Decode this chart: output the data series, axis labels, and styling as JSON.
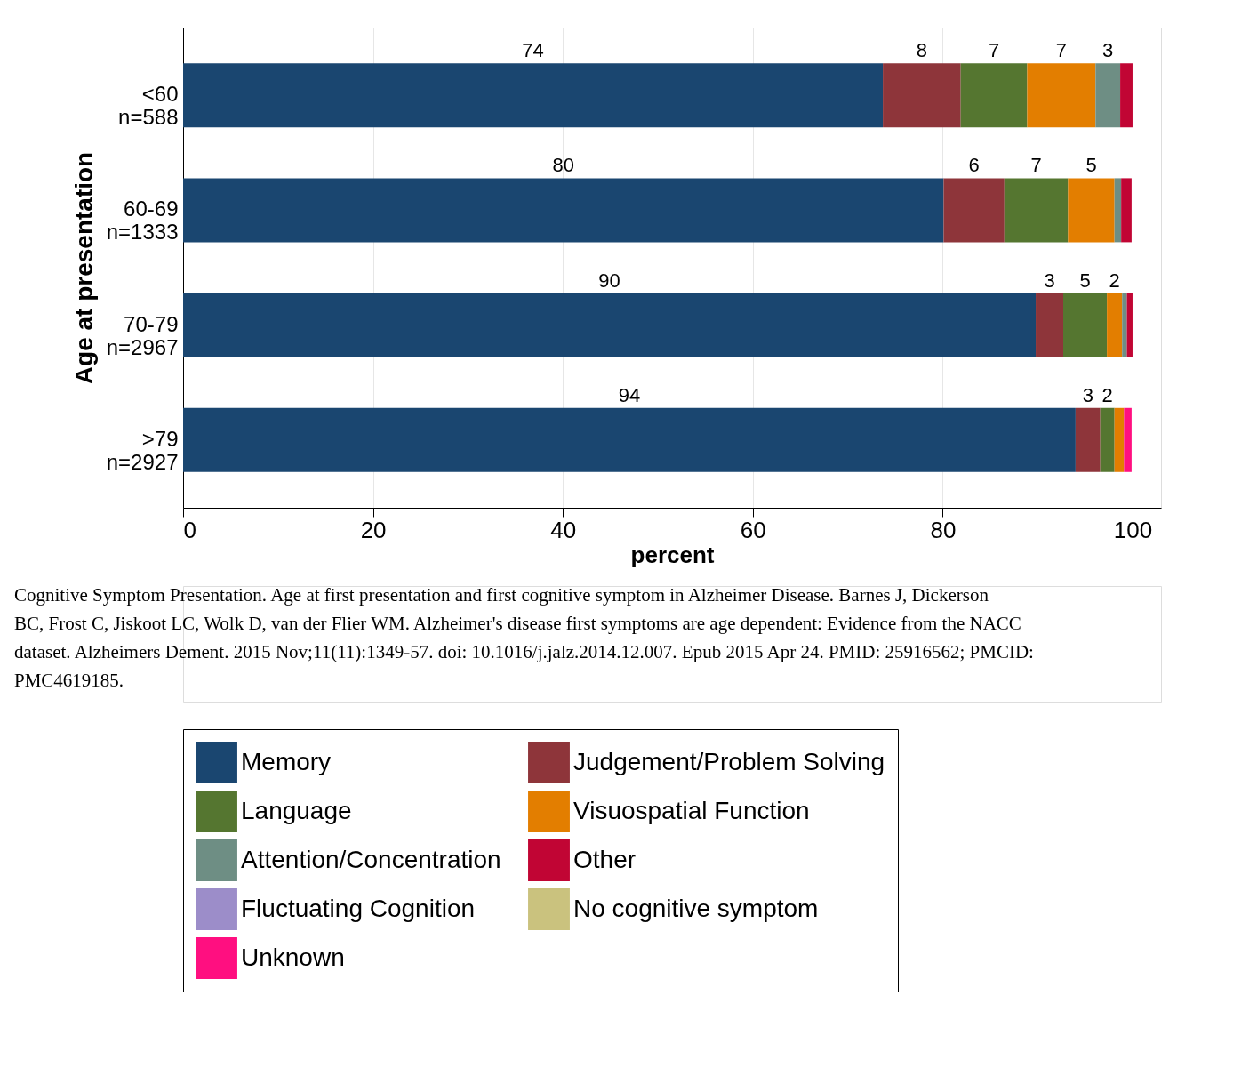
{
  "chart_data": {
    "type": "bar",
    "orientation": "horizontal",
    "stacked": true,
    "categories": [
      "<60\nn=588",
      "60-69\nn=1333",
      "70-79\nn=2967",
      ">79\nn=2927"
    ],
    "series": [
      {
        "name": "Memory",
        "color": "#1a4670",
        "values": [
          73.7,
          80.1,
          89.8,
          94.0
        ],
        "value_labels": [
          "74",
          "80",
          "90",
          "94"
        ]
      },
      {
        "name": "Judgement/Problem Solving",
        "color": "#8e353a",
        "values": [
          8.2,
          6.4,
          2.9,
          2.6
        ],
        "value_labels": [
          "8",
          "6",
          "3",
          "3"
        ]
      },
      {
        "name": "Language",
        "color": "#557630",
        "values": [
          7.0,
          6.7,
          4.6,
          1.5
        ],
        "value_labels": [
          "7",
          "7",
          "5",
          "2"
        ]
      },
      {
        "name": "Visuospatial Function",
        "color": "#e37e00",
        "values": [
          7.2,
          4.9,
          1.6,
          1.0
        ],
        "value_labels": [
          "7",
          "5",
          "2",
          null
        ]
      },
      {
        "name": "Attention/Concentration",
        "color": "#6e8e84",
        "values": [
          2.6,
          0.7,
          0.5,
          null
        ],
        "value_labels": [
          "3",
          null,
          null,
          null
        ]
      },
      {
        "name": "Other",
        "color": "#c10534",
        "values": [
          1.3,
          1.1,
          0.6,
          null
        ]
      },
      {
        "name": "Fluctuating Cognition",
        "color": "#9c8dc9",
        "values": [
          null,
          null,
          null,
          null
        ]
      },
      {
        "name": "No cognitive symptom",
        "color": "#cac27e",
        "values": [
          null,
          null,
          null,
          null
        ]
      },
      {
        "name": "Unknown",
        "color": "#ff0f80",
        "values": [
          null,
          null,
          null,
          0.8
        ]
      }
    ],
    "xlabel": "percent",
    "ylabel": "Age at presentation",
    "xlim": [
      0,
      103
    ],
    "xticks": [
      0,
      20,
      40,
      60,
      80,
      100
    ],
    "grid": "x",
    "legend": "bottom",
    "annotations": [
      "Cognitive Symptom Presentation. Age at first presentation and first cognitive symptom in Alzheimer Disease. Barnes J, Dickerson BC, Frost C, Jiskoot LC, Wolk D, van der Flier WM. Alzheimer's disease first symptoms are age dependent: Evidence from the NACC dataset. Alzheimers Dement. 2015 Nov;11(11):1349-57. doi: 10.1016/j.jalz.2014.12.007. Epub 2015 Apr 24. PMID: 25916562; PMCID: PMC4619185."
    ]
  }
}
